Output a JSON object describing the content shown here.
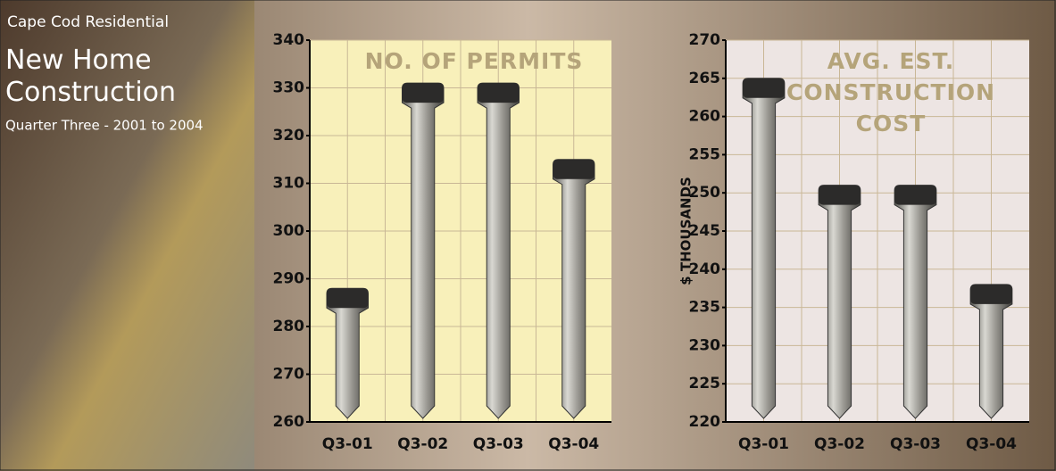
{
  "header": {
    "kicker": "Cape Cod Residential",
    "title": "New Home Construction",
    "subtitle": "Quarter Three - 2001 to 2004"
  },
  "chart_data": [
    {
      "type": "bar",
      "title": "NO. OF PERMITS",
      "categories": [
        "Q3-01",
        "Q3-02",
        "Q3-03",
        "Q3-04"
      ],
      "values": [
        288,
        331,
        331,
        315
      ],
      "ylim": [
        260,
        340
      ],
      "yticks": [
        260,
        270,
        280,
        290,
        300,
        310,
        320,
        330,
        340
      ],
      "grid": true,
      "background": "#f8f0ba"
    },
    {
      "type": "bar",
      "title": "AVG. EST. CONSTRUCTION COST",
      "y_label": "$ THOUSANDS",
      "categories": [
        "Q3-01",
        "Q3-02",
        "Q3-03",
        "Q3-04"
      ],
      "values": [
        265,
        251,
        251,
        238
      ],
      "ylim": [
        220,
        270
      ],
      "yticks": [
        220,
        225,
        230,
        235,
        240,
        245,
        250,
        255,
        260,
        265,
        270
      ],
      "grid": true,
      "background": "#ede5e3"
    }
  ]
}
